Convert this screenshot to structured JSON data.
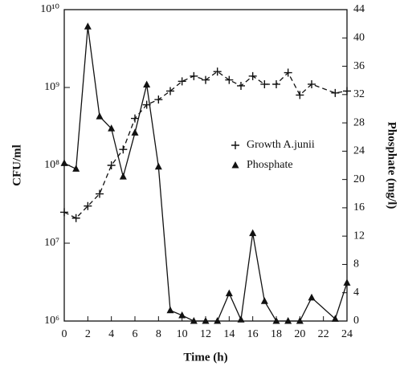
{
  "chart_data": {
    "type": "line",
    "x_label": "Time (h)",
    "y_label": "CFU/ml",
    "y2_label": "Phosphate (mg/l)",
    "x": [
      0,
      1,
      2,
      3,
      4,
      5,
      6,
      7,
      8,
      9,
      10,
      11,
      12,
      13,
      14,
      15,
      16,
      17,
      18,
      19,
      20,
      21,
      23,
      24
    ],
    "xlim": [
      0,
      24
    ],
    "xticks": [
      0,
      2,
      4,
      6,
      8,
      10,
      12,
      14,
      16,
      18,
      20,
      22,
      24
    ],
    "ylim": [
      1000000,
      10000000000
    ],
    "y_log": true,
    "yticks": [
      {
        "value": 1000000,
        "label": "10⁶"
      },
      {
        "value": 10000000,
        "label": "10⁷"
      },
      {
        "value": 100000000,
        "label": "10⁸"
      },
      {
        "value": 1000000000,
        "label": "10⁹"
      },
      {
        "value": 10000000000,
        "label": "10¹⁰"
      }
    ],
    "y2lim": [
      0,
      44
    ],
    "y2ticks": [
      0,
      4,
      8,
      12,
      16,
      20,
      24,
      28,
      32,
      36,
      40,
      44
    ],
    "legend": "center-right",
    "series": [
      {
        "name": "Growth A.junii",
        "color": "#111111",
        "marker": "plus",
        "dashed": true,
        "values": [
          25000000,
          21000000,
          30000000,
          43000000,
          100000000,
          160000000,
          400000000,
          600000000,
          700000000,
          900000000,
          1200000000,
          1400000000,
          1250000000,
          1600000000,
          1250000000,
          1050000000,
          1400000000,
          1100000000,
          1100000000,
          1550000000,
          800000000,
          1100000000,
          850000000,
          900000000
        ]
      },
      {
        "name": "Phosphate",
        "color": "#111111",
        "marker": "triangle",
        "axis": "y2",
        "values": [
          22.3,
          21.5,
          41.6,
          28.9,
          27.2,
          20.4,
          26.6,
          33.4,
          21.8,
          1.5,
          0.8,
          0,
          0,
          0,
          3.9,
          0.2,
          12.4,
          2.8,
          0,
          0,
          0,
          3.3,
          0.3,
          5.4
        ]
      }
    ]
  }
}
